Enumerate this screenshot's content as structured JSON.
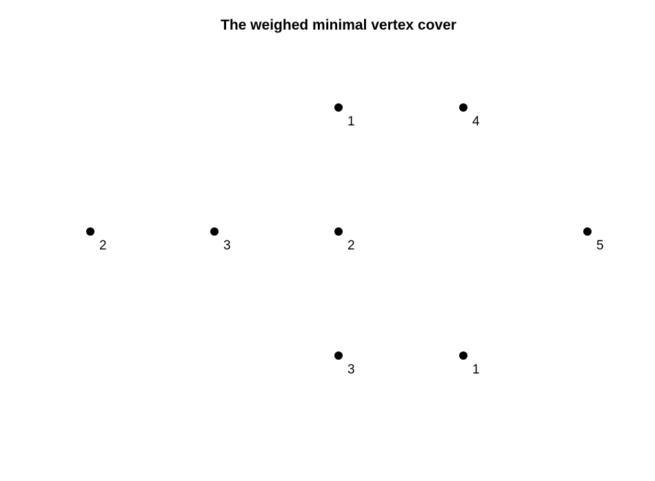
{
  "title": "The weighed minimal vertex cover",
  "graph": {
    "point_color": "#000000",
    "nodes": [
      {
        "weight": "1"
      },
      {
        "weight": "4"
      },
      {
        "weight": "2"
      },
      {
        "weight": "3"
      },
      {
        "weight": "2"
      },
      {
        "weight": "5"
      },
      {
        "weight": "3"
      },
      {
        "weight": "1"
      }
    ]
  }
}
